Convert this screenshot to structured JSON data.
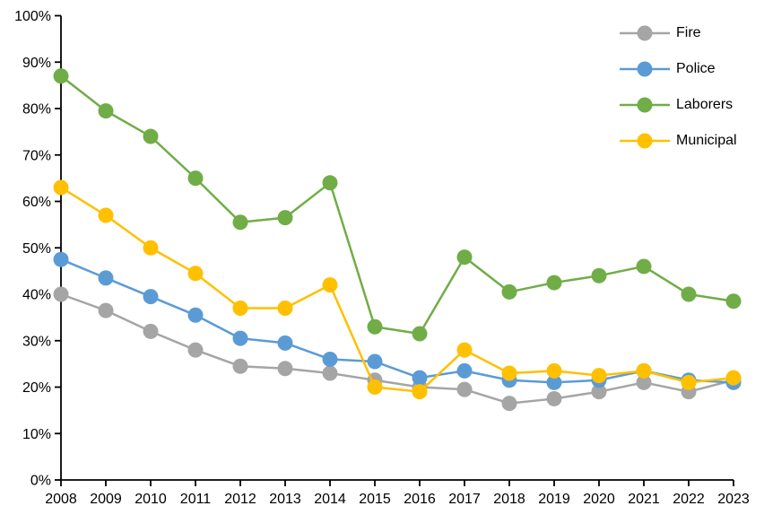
{
  "chart_data": {
    "type": "line",
    "title": "",
    "xlabel": "",
    "ylabel": "",
    "x": [
      "2008",
      "2009",
      "2010",
      "2011",
      "2012",
      "2013",
      "2014",
      "2015",
      "2016",
      "2017",
      "2018",
      "2019",
      "2020",
      "2021",
      "2022",
      "2023"
    ],
    "series": [
      {
        "name": "Fire",
        "color": "#A5A5A5",
        "values": [
          40,
          36.5,
          32,
          28,
          24.5,
          24,
          23,
          21.5,
          20,
          19.5,
          16.5,
          17.5,
          19,
          21,
          19,
          21.5
        ]
      },
      {
        "name": "Police",
        "color": "#5B9BD5",
        "values": [
          47.5,
          43.5,
          39.5,
          35.5,
          30.5,
          29.5,
          26,
          25.5,
          22,
          23.5,
          21.5,
          21,
          21.5,
          23.5,
          21.5,
          21
        ]
      },
      {
        "name": "Laborers",
        "color": "#70AD47",
        "values": [
          87,
          79.5,
          74,
          65,
          55.5,
          56.5,
          64,
          33,
          31.5,
          48,
          40.5,
          42.5,
          44,
          46,
          40,
          38.5
        ]
      },
      {
        "name": "Municipal",
        "color": "#FFC000",
        "values": [
          63,
          57,
          50,
          44.5,
          37,
          37,
          42,
          20,
          19,
          28,
          23,
          23.5,
          22.5,
          23.5,
          21,
          22
        ]
      }
    ],
    "ylim": [
      0,
      100
    ],
    "ytick_step": 10,
    "ytick_labels": [
      "0%",
      "10%",
      "20%",
      "30%",
      "40%",
      "50%",
      "60%",
      "70%",
      "80%",
      "90%",
      "100%"
    ],
    "ytick_suffix": "%",
    "grid": false,
    "legend_position": "top-right",
    "legend_items": [
      "Fire",
      "Police",
      "Laborers",
      "Municipal"
    ],
    "axis_color": "#000000",
    "text_color": "#000000"
  }
}
